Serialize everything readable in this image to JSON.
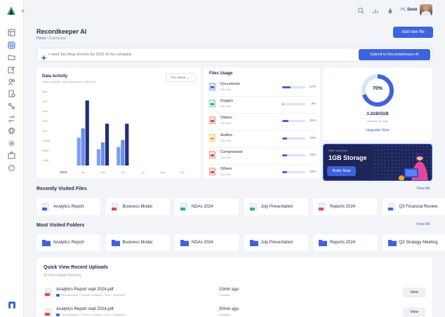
{
  "colors": {
    "accent": "#3d63dd",
    "bar_light": "#6a8ef0",
    "bar_dark": "#1f2f7a",
    "promo_bg": "#1e2558"
  },
  "topbar": {
    "greeting_prefix": "Hi,",
    "user_name": "Sean"
  },
  "header": {
    "title": "Recordkeeper AI",
    "breadcrumb_home": "Home",
    "breadcrumb_sep": "/",
    "breadcrumb_current": "Dashboard",
    "add_file_label": "Add new file"
  },
  "prompt": {
    "text": "I need Tax filing records for 2022 of my company",
    "submit_label": "Submit to RecordsKeeper AI"
  },
  "activity": {
    "title": "Data Activity",
    "subtitle": "35KB uploaded, 5MB downloaded, 40M Tools",
    "period": "This Week"
  },
  "chart_data": {
    "type": "bar",
    "categories": [
      "2023",
      "Apr",
      "May",
      "Jun",
      "Jul",
      "Aug",
      "Sep"
    ],
    "series": [
      {
        "values": [
          0,
          60,
          35,
          40,
          0,
          0,
          0
        ]
      },
      {
        "values": [
          0,
          80,
          50,
          55,
          0,
          0,
          0
        ]
      },
      {
        "values": [
          0,
          140,
          90,
          90,
          0,
          0,
          0
        ]
      }
    ],
    "yticks": [
      "500k",
      "400k",
      "300k",
      "200k",
      "100k",
      "100MB",
      "50MB",
      "10MB"
    ],
    "ylim": [
      0,
      160
    ]
  },
  "usage": {
    "title": "Files Usage",
    "items": [
      {
        "name": "Documents",
        "count": "235 Files",
        "pct": 37,
        "pct_label": "37%",
        "color": "#3d63dd"
      },
      {
        "name": "Images",
        "count": "235 Files",
        "pct": 3,
        "pct_label": "3%",
        "color": "#2fb36b"
      },
      {
        "name": "Videos",
        "count": "235 Files",
        "pct": 26,
        "pct_label": "26%",
        "color": "#e5484d"
      },
      {
        "name": "Audios",
        "count": "235 Files",
        "pct": 20,
        "pct_label": "20%",
        "color": "#f5a524"
      },
      {
        "name": "Compressed",
        "count": "235 Files",
        "pct": 20,
        "pct_label": "20%",
        "color": "#e5484d"
      },
      {
        "name": "Others",
        "count": "235 Files",
        "pct": 20,
        "pct_label": "20%",
        "color": "#e5484d"
      }
    ]
  },
  "storage": {
    "percent_label": "70%",
    "percent": 70,
    "used": "3.2GB/5GB",
    "sub": "Available Storage",
    "upgrade_label": "Upgrade Now"
  },
  "promo": {
    "small": "Refer and Earn",
    "big": "1GB Storage",
    "button": "Refer Now"
  },
  "recent_files": {
    "title": "Recently Visited Files",
    "view_all": "View All",
    "items": [
      {
        "label": "Analytics Report",
        "icon": "doc-icon",
        "color": "#3d63dd"
      },
      {
        "label": "Business Modal",
        "icon": "pdf-icon",
        "color": "#e5484d"
      },
      {
        "label": "NDAs 2024",
        "icon": "sheet-icon",
        "color": "#2fb36b"
      },
      {
        "label": "July Presentation",
        "icon": "sheet-icon",
        "color": "#2fb36b"
      },
      {
        "label": "Reports 2024",
        "icon": "pdf-icon",
        "color": "#e5484d"
      },
      {
        "label": "Q3 Financial Review",
        "icon": "doc-icon",
        "color": "#3d63dd"
      }
    ]
  },
  "folders": {
    "title": "Most Visited Folders",
    "view_all": "View All",
    "items": [
      {
        "label": "Analytics Report"
      },
      {
        "label": "Business Modal"
      },
      {
        "label": "NDAs 2024"
      },
      {
        "label": "July Presentation"
      },
      {
        "label": "Reports 2024"
      },
      {
        "label": "Q3 Strategy Meeting"
      }
    ]
  },
  "uploads": {
    "title": "Quick View Recent Uploads",
    "subtitle": "25 Files Added Recently",
    "rows": [
      {
        "name": "Analytics Report sept 2024.pdf",
        "path": "RecordsKeeper > Reports > Analytics > 2024 > September",
        "time": "15min ago",
        "status": "Uploaded",
        "action": "View"
      },
      {
        "name": "Analytics Report sept 2024.pdf",
        "path": "RecordsKeeper > Reports > Analytics > 2024 > September",
        "time": "30min ago",
        "status": "Uploaded",
        "action": "View"
      }
    ]
  }
}
